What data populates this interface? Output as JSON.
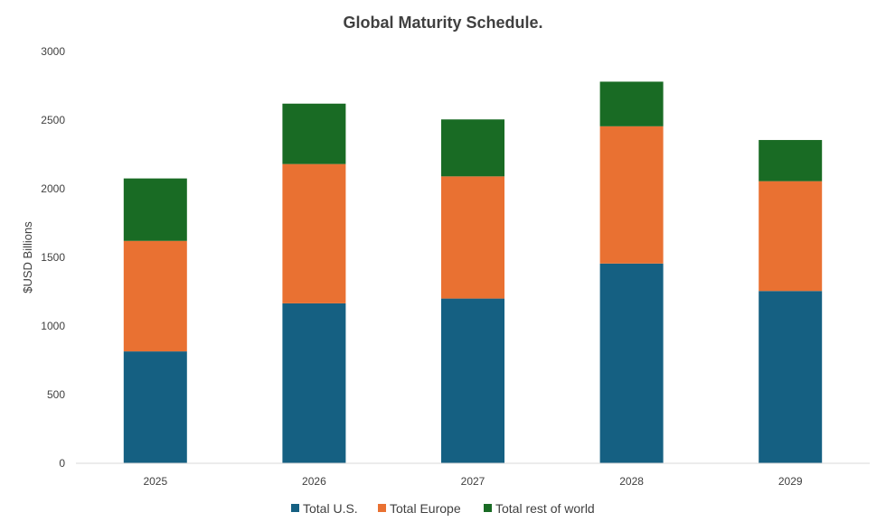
{
  "chart_data": {
    "type": "bar",
    "stacked": true,
    "title": "Global Maturity Schedule.",
    "xlabel": "",
    "ylabel": "$USD Billions",
    "categories": [
      "2025",
      "2026",
      "2027",
      "2028",
      "2029"
    ],
    "series": [
      {
        "name": "Total U.S.",
        "color": "#156082",
        "values": [
          815,
          1165,
          1200,
          1455,
          1255
        ]
      },
      {
        "name": "Total Europe",
        "color": "#E97132",
        "values": [
          805,
          1015,
          890,
          1000,
          800
        ]
      },
      {
        "name": "Total rest of world",
        "color": "#196B24",
        "values": [
          455,
          440,
          415,
          325,
          300
        ]
      }
    ],
    "ylim": [
      0,
      3000
    ],
    "yticks": [
      "0",
      "500",
      "1000",
      "1500",
      "2000",
      "2500",
      "3000"
    ],
    "grid": false,
    "legend": "bottom"
  }
}
